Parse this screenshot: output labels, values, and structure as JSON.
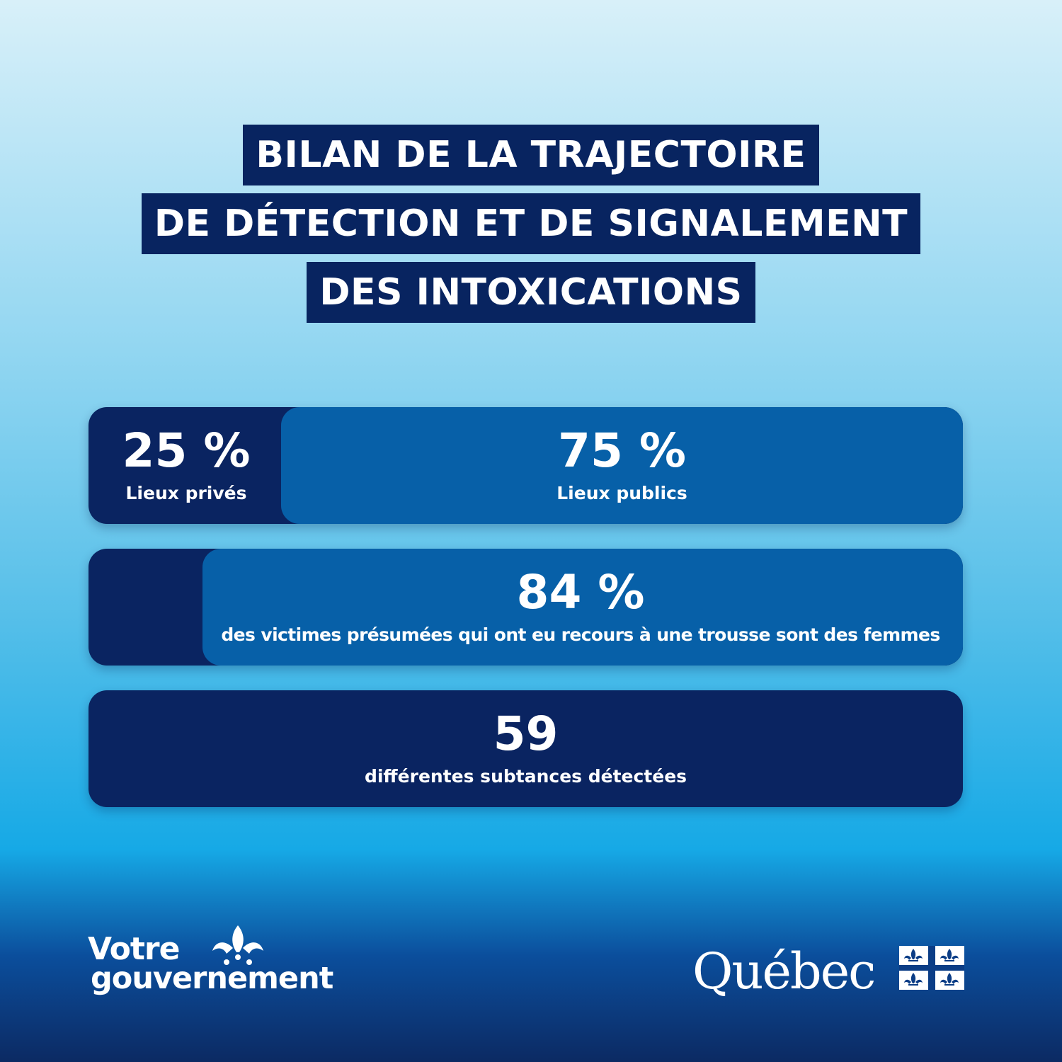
{
  "title_lines": [
    "BILAN DE LA TRAJECTOIRE",
    "DE DÉTECTION ET DE SIGNALEMENT",
    "DES INTOXICATIONS"
  ],
  "stats": {
    "private": {
      "value": "25 %",
      "label": "Lieux privés",
      "fraction": 0.25
    },
    "public": {
      "value": "75 %",
      "label": "Lieux publics",
      "fraction": 0.75
    },
    "women": {
      "value": "84 %",
      "label": "des victimes présumées qui ont eu recours à une trousse sont des femmes",
      "fraction": 0.84
    },
    "substances": {
      "value": "59",
      "label": "différentes subtances détectées"
    }
  },
  "logos": {
    "votre_gouvernement": {
      "line1": "Votre",
      "line2": "gouvernement"
    },
    "quebec": {
      "word": "Québec"
    }
  },
  "colors": {
    "navy": "#0a2461",
    "blue": "#0760a8",
    "white": "#ffffff"
  }
}
